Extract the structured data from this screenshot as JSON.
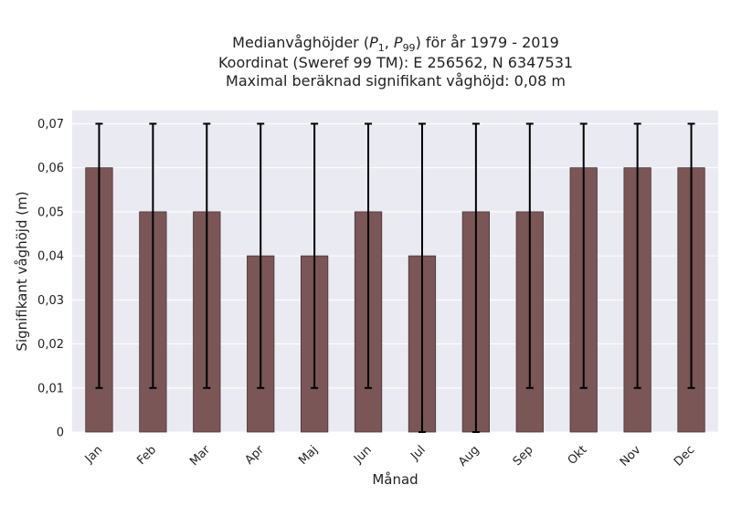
{
  "title_lines": [
    "Medianvåghöjder (P1, P99) för år 1979 - 2019",
    "Koordinat (Sweref 99 TM): E 256562, N 6347531",
    "Maximal beräknad signifikant våghöjd: 0,08 m"
  ],
  "chart_data": {
    "type": "bar",
    "categories": [
      "Jan",
      "Feb",
      "Mar",
      "Apr",
      "Maj",
      "Jun",
      "Jul",
      "Aug",
      "Sep",
      "Okt",
      "Nov",
      "Dec"
    ],
    "values": [
      0.06,
      0.05,
      0.05,
      0.04,
      0.04,
      0.05,
      0.04,
      0.05,
      0.05,
      0.06,
      0.06,
      0.06
    ],
    "error_low": [
      0.01,
      0.01,
      0.01,
      0.01,
      0.01,
      0.01,
      0.0,
      0.0,
      0.01,
      0.01,
      0.01,
      0.01
    ],
    "error_high": [
      0.07,
      0.07,
      0.07,
      0.07,
      0.07,
      0.07,
      0.07,
      0.07,
      0.07,
      0.07,
      0.07,
      0.07
    ],
    "xlabel": "Månad",
    "ylabel": "Signifikant våghöjd (m)",
    "ylim": [
      0,
      0.073
    ],
    "yticks": [
      0,
      0.01,
      0.02,
      0.03,
      0.04,
      0.05,
      0.06,
      0.07
    ],
    "ytick_labels": [
      "0",
      "0,01",
      "0,02",
      "0,03",
      "0,04",
      "0,05",
      "0,06",
      "0,07"
    ],
    "grid": true,
    "colors": {
      "bar_fill": "#7a5656",
      "bar_edge": "#4a3333",
      "error_bar": "#000000",
      "plot_background": "#eaeaf2",
      "grid": "#ffffff"
    }
  }
}
